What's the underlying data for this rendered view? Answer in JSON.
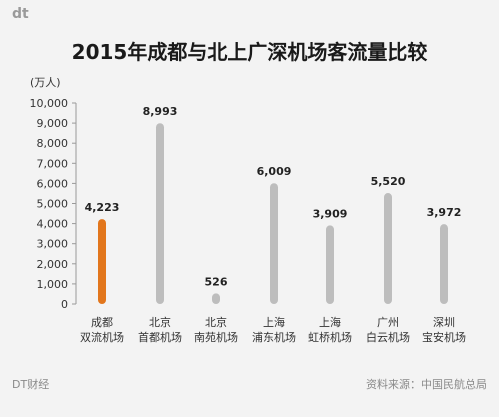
{
  "brand": {
    "logo_text": "dt",
    "footer_left": "DT财经",
    "footer_right": "资料来源：中国民航总局"
  },
  "chart_data": {
    "type": "bar",
    "title": "2015年成都与北上广深机场客流量比较",
    "ylabel": "(万人)",
    "ylim": [
      0,
      10000
    ],
    "yticks": [
      "0",
      "1,000",
      "2,000",
      "3,000",
      "4,000",
      "5,000",
      "6,000",
      "7,000",
      "8,000",
      "9,000",
      "10,000"
    ],
    "categories": [
      [
        "成都",
        "双流机场"
      ],
      [
        "北京",
        "首都机场"
      ],
      [
        "北京",
        "南苑机场"
      ],
      [
        "上海",
        "浦东机场"
      ],
      [
        "上海",
        "虹桥机场"
      ],
      [
        "广州",
        "白云机场"
      ],
      [
        "深圳",
        "宝安机场"
      ]
    ],
    "values": [
      4223,
      8993,
      526,
      6009,
      3909,
      5520,
      3972
    ],
    "value_labels": [
      "4,223",
      "8,993",
      "526",
      "6,009",
      "3,909",
      "5,520",
      "3,972"
    ],
    "colors": [
      "#e2761c",
      "#bdbdbd",
      "#bdbdbd",
      "#bdbdbd",
      "#bdbdbd",
      "#bdbdbd",
      "#bdbdbd"
    ],
    "grid": false,
    "legend": "none"
  }
}
